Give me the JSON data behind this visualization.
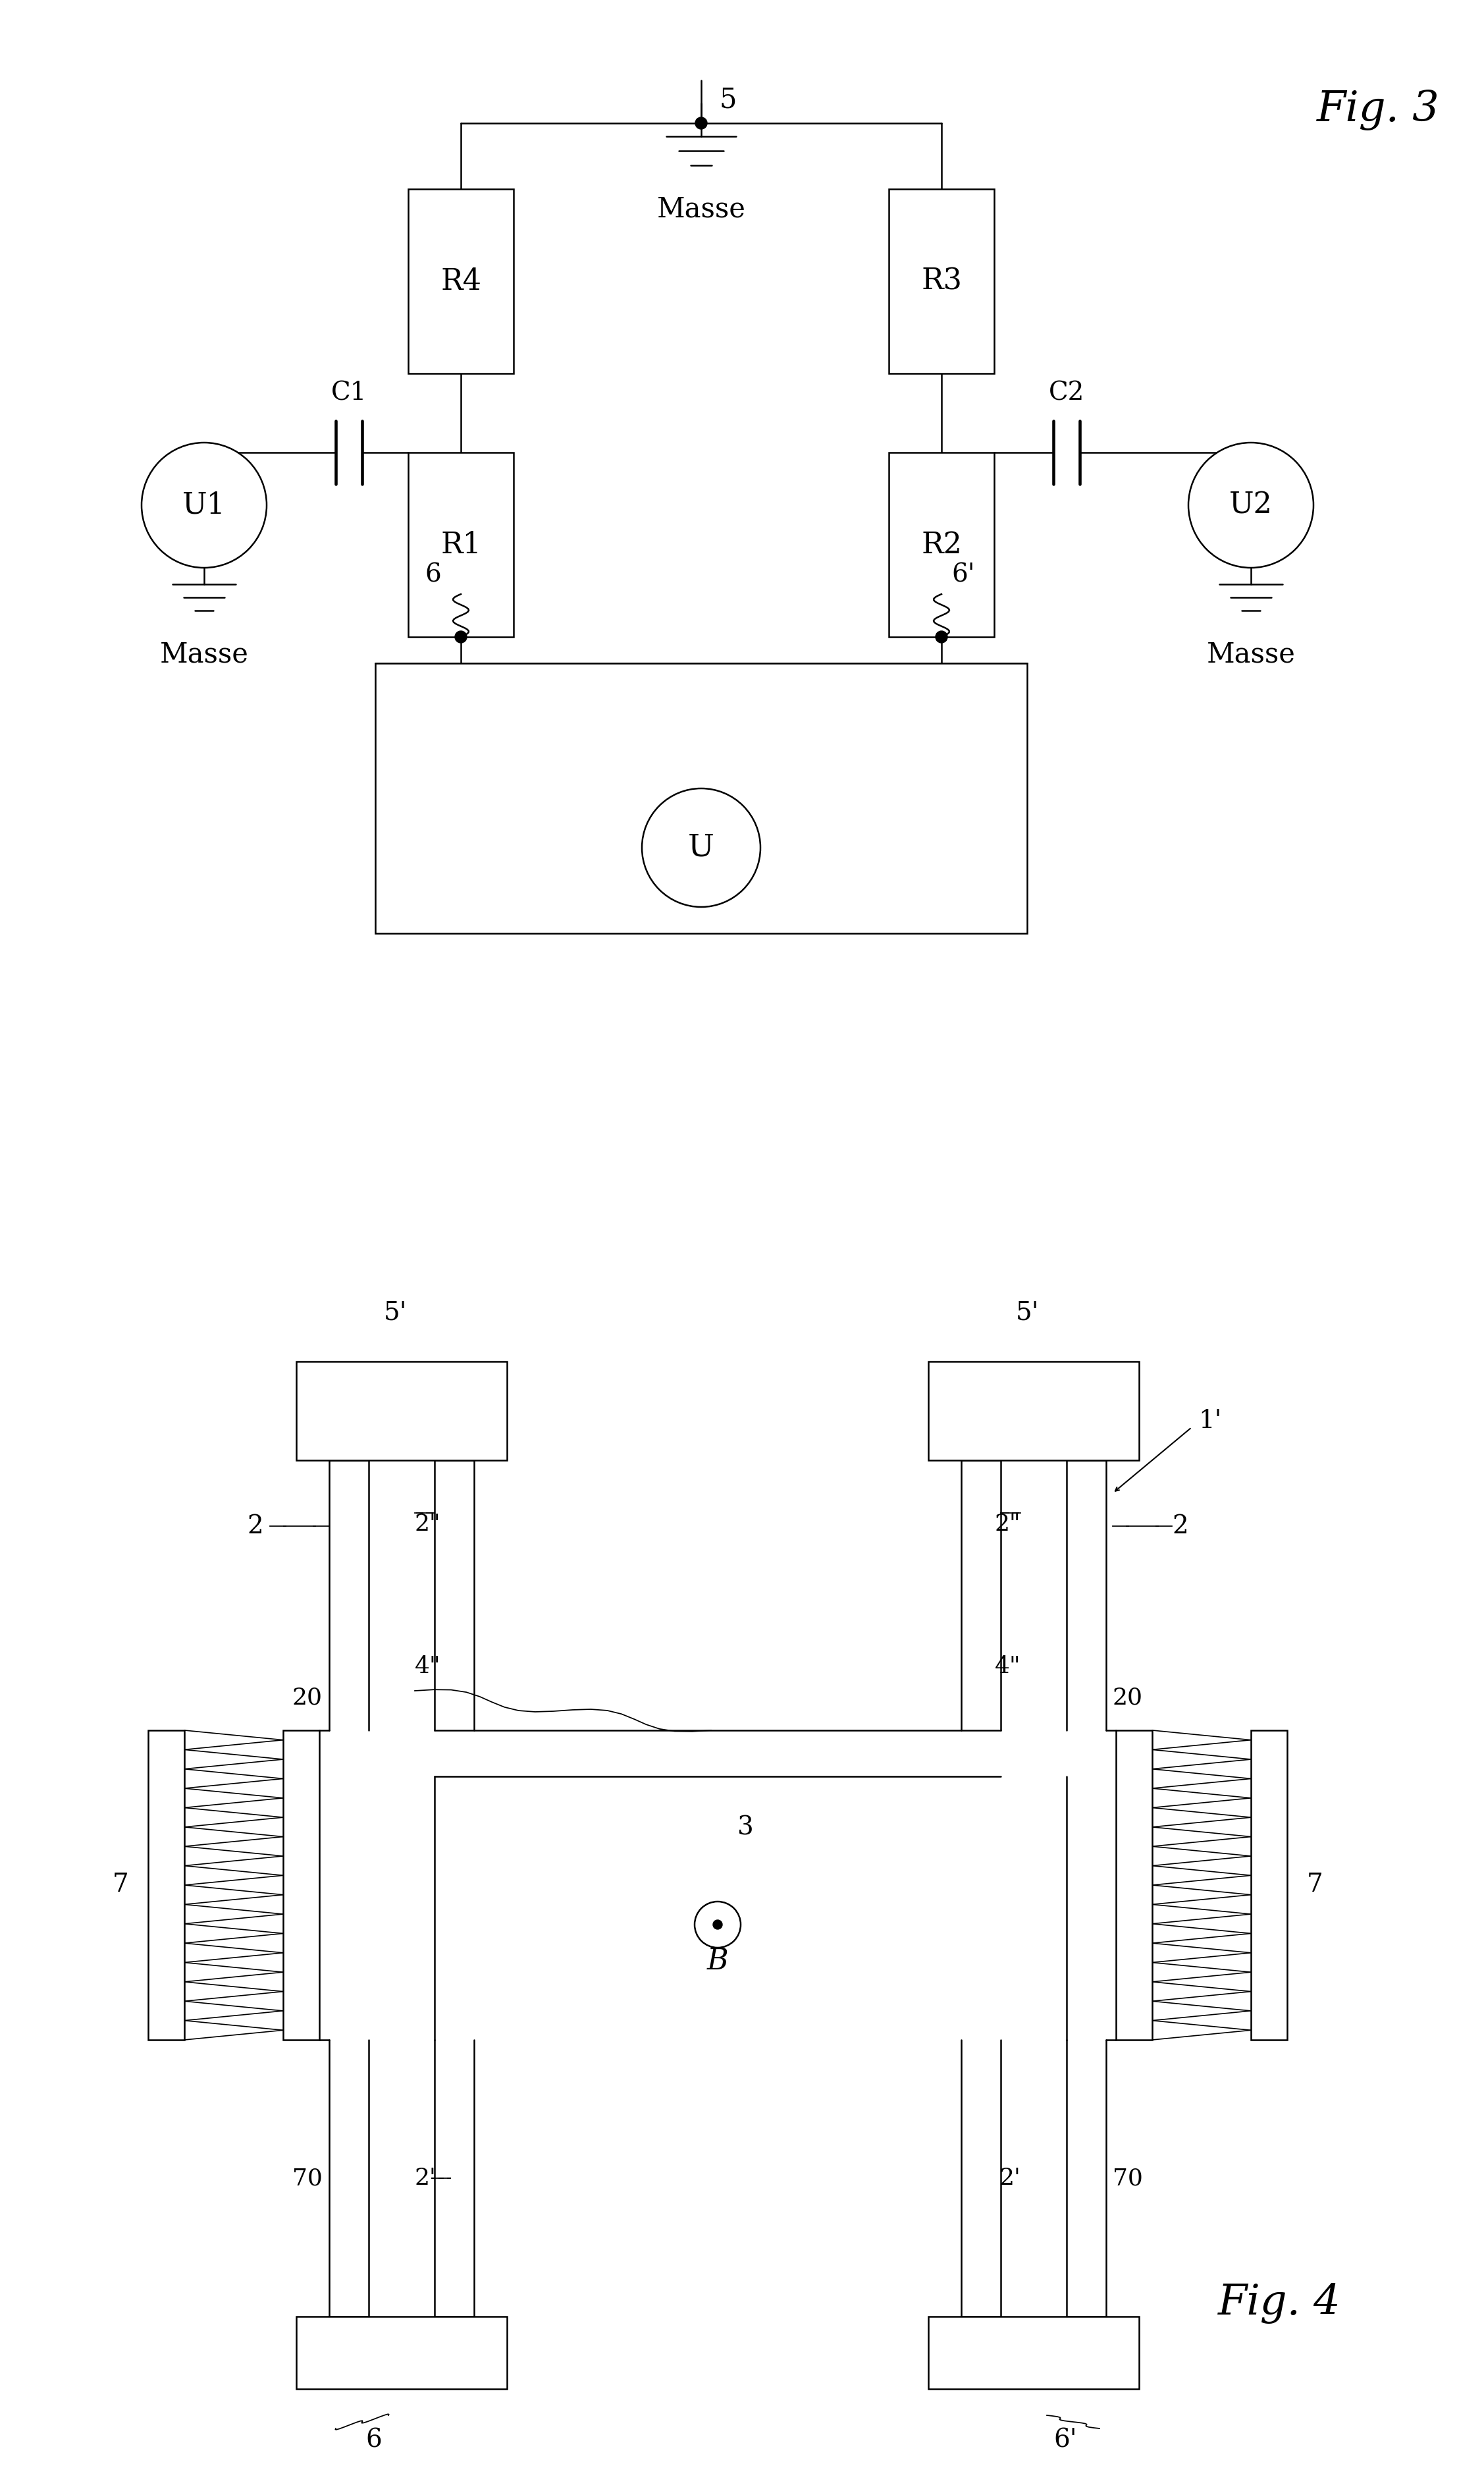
{
  "bg_color": "#ffffff",
  "lw": 1.8,
  "fig3_label": "Fig. 3",
  "fig4_label": "Fig. 4",
  "masse": "Masse",
  "font_serif": "DejaVu Serif"
}
